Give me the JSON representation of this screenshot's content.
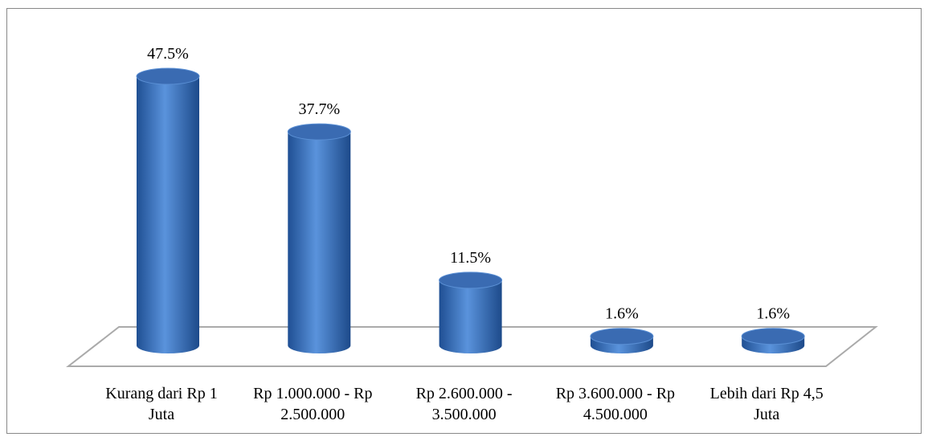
{
  "chart_data": {
    "type": "bar",
    "categories": [
      "Kurang dari Rp 1 Juta",
      "Rp 1.000.000 - Rp 2.500.000",
      "Rp 2.600.000 - 3.500.000",
      "Rp 3.600.000 - Rp 4.500.000",
      "Lebih dari Rp 4,5 Juta"
    ],
    "values": [
      47.5,
      37.7,
      11.5,
      1.6,
      1.6
    ],
    "value_labels": [
      "47.5%",
      "37.7%",
      "11.5%",
      "1.6%",
      "1.6%"
    ],
    "color": "#3f74bf"
  }
}
